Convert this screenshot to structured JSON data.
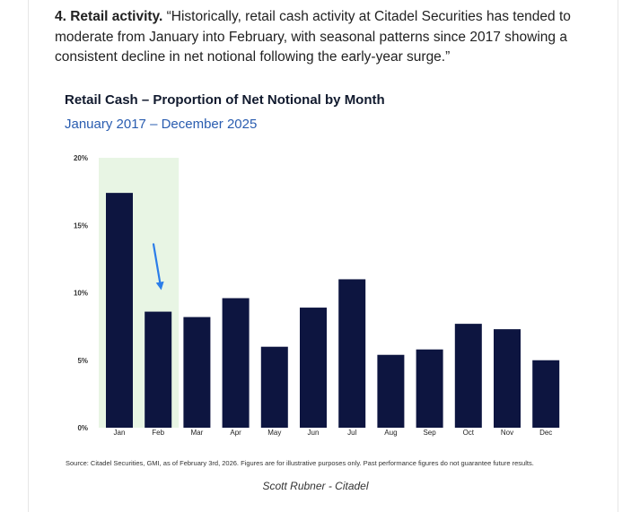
{
  "article": {
    "lead_bold": "4. Retail activity.",
    "lead_text": " “Historically, retail cash activity at Citadel Securities has tended to moderate from January into February, with seasonal patterns since 2017 showing a consistent decline in net notional following the early-year surge.”"
  },
  "chart_data": {
    "type": "bar",
    "title": "Retail Cash – Proportion of Net Notional by Month",
    "subtitle": "January 2017 – December 2025",
    "categories": [
      "Jan",
      "Feb",
      "Mar",
      "Apr",
      "May",
      "Jun",
      "Jul",
      "Aug",
      "Sep",
      "Oct",
      "Nov",
      "Dec"
    ],
    "values": [
      17.4,
      8.6,
      8.2,
      9.6,
      6.0,
      8.9,
      11.0,
      5.4,
      5.8,
      7.7,
      7.3,
      5.0
    ],
    "yticks": [
      0,
      5,
      10,
      15,
      20
    ],
    "ytick_labels": [
      "0%",
      "5%",
      "10%",
      "15%",
      "20%"
    ],
    "ylim": [
      0,
      20
    ],
    "xlabel": "",
    "ylabel": "",
    "highlight": [
      "Jan",
      "Feb"
    ],
    "annotation": "arrow pointing down from Jan toward Feb",
    "colors": {
      "bar": "#0d1540",
      "highlight": "#e8f5e4",
      "arrow": "#2b7de9"
    }
  },
  "source": "Source: Citadel Securities, GMI, as of February 3rd, 2026. Figures are for illustrative purposes only. Past performance figures do not guarantee future results.",
  "caption": "Scott Rubner - Citadel"
}
